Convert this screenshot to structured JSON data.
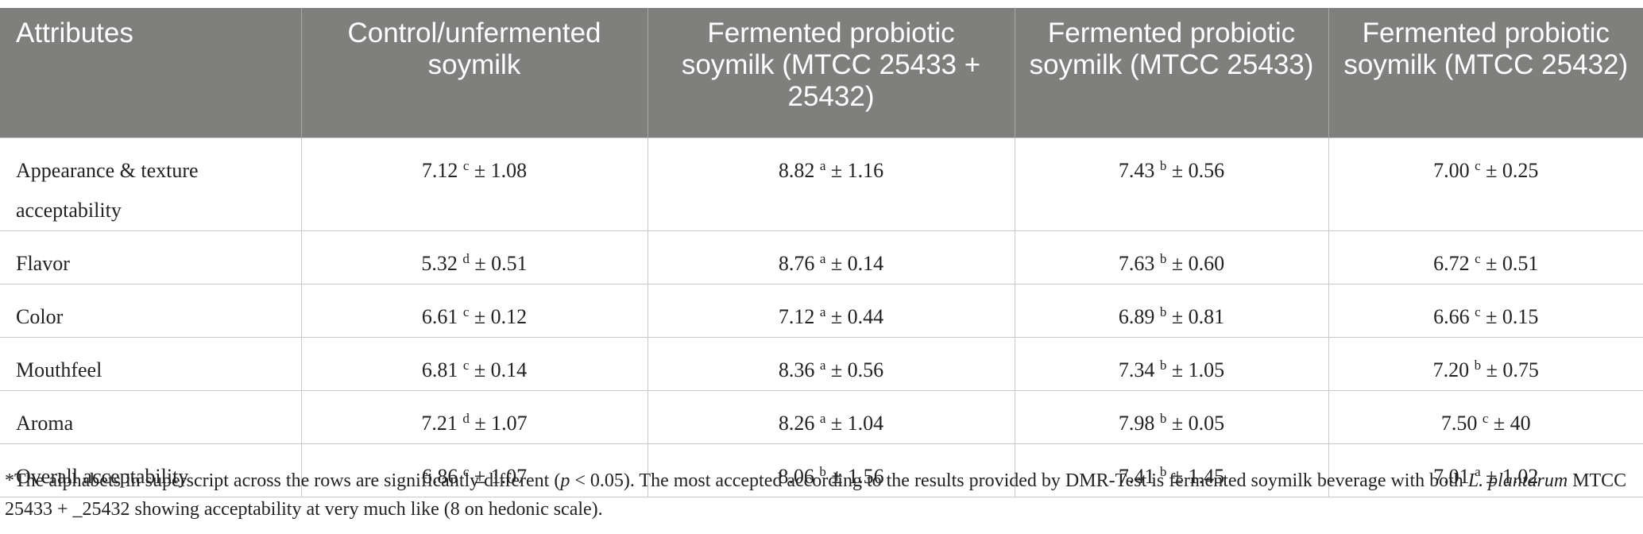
{
  "table": {
    "header": [
      "Attributes",
      "Control/unfermented soymilk",
      "Fermented probiotic soymilk (MTCC 25433 + 25432)",
      "Fermented probiotic soymilk (MTCC 25433)",
      "Fermented probiotic soymilk (MTCC 25432)"
    ],
    "rows": [
      {
        "attribute": "Appearance & texture acceptability",
        "cells": [
          {
            "mean": "7.12",
            "sup": "c",
            "sd": "± 1.08"
          },
          {
            "mean": "8.82",
            "sup": "a",
            "sd": "± 1.16"
          },
          {
            "mean": "7.43",
            "sup": "b",
            "sd": "± 0.56"
          },
          {
            "mean": "7.00",
            "sup": "c",
            "sd": "± 0.25"
          }
        ]
      },
      {
        "attribute": "Flavor",
        "cells": [
          {
            "mean": "5.32",
            "sup": "d",
            "sd": "± 0.51"
          },
          {
            "mean": "8.76",
            "sup": "a",
            "sd": "± 0.14"
          },
          {
            "mean": "7.63",
            "sup": "b",
            "sd": "± 0.60"
          },
          {
            "mean": "6.72",
            "sup": "c",
            "sd": "± 0.51"
          }
        ]
      },
      {
        "attribute": "Color",
        "cells": [
          {
            "mean": "6.61",
            "sup": "c",
            "sd": "± 0.12"
          },
          {
            "mean": "7.12",
            "sup": "a",
            "sd": "± 0.44"
          },
          {
            "mean": "6.89",
            "sup": "b",
            "sd": "± 0.81"
          },
          {
            "mean": "6.66",
            "sup": "c",
            "sd": "± 0.15"
          }
        ]
      },
      {
        "attribute": "Mouthfeel",
        "cells": [
          {
            "mean": "6.81",
            "sup": "c",
            "sd": "± 0.14"
          },
          {
            "mean": "8.36",
            "sup": "a",
            "sd": "± 0.56"
          },
          {
            "mean": "7.34",
            "sup": "b",
            "sd": "± 1.05"
          },
          {
            "mean": "7.20",
            "sup": "b",
            "sd": "± 0.75"
          }
        ]
      },
      {
        "attribute": "Aroma",
        "cells": [
          {
            "mean": "7.21",
            "sup": "d",
            "sd": "± 1.07"
          },
          {
            "mean": "8.26",
            "sup": "a",
            "sd": "± 1.04"
          },
          {
            "mean": "7.98",
            "sup": "b",
            "sd": "± 0.05"
          },
          {
            "mean": "7.50",
            "sup": "c",
            "sd": "± 40"
          }
        ]
      },
      {
        "attribute": "Overall acceptability",
        "cells": [
          {
            "mean": "6.86",
            "sup": "c",
            "sd": "± 1.07"
          },
          {
            "mean": "8.06",
            "sup": "b",
            "sd": "± 1.56"
          },
          {
            "mean": "7.41",
            "sup": "b",
            "sd": "± 1.45"
          },
          {
            "mean": "7.01",
            "sup": "a",
            "sd": "± 1.02"
          }
        ]
      }
    ]
  },
  "footnote": [
    "*The alphabets in superscript across the rows are significantly different (",
    "p",
    " < 0.05). The most accepted according to the results provided by DMR-Test is fermented soymilk beverage with both ",
    "L. plantarum",
    " MTCC 25433 + _25432 showing acceptability at very much like (8 on hedonic scale)."
  ]
}
